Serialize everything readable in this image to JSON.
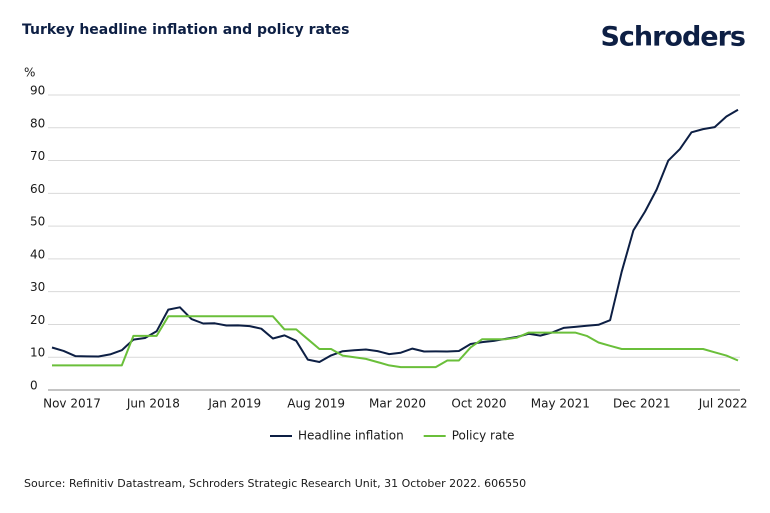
{
  "brand": "Schroders",
  "chart_data": {
    "type": "line",
    "title": "Turkey headline inflation and policy rates",
    "y_label": "%",
    "source": "Source: Refinitiv Datastream, Schroders Strategic Research Unit, 31 October 2022. 606550",
    "categories": [
      "Nov 2017",
      null,
      null,
      null,
      null,
      null,
      null,
      "Jun 2018",
      null,
      null,
      null,
      null,
      null,
      null,
      "Jan 2019",
      null,
      null,
      null,
      null,
      null,
      null,
      "Aug 2019",
      null,
      null,
      null,
      null,
      null,
      null,
      "Mar 2020",
      null,
      null,
      null,
      null,
      null,
      null,
      "Oct 2020",
      null,
      null,
      null,
      null,
      null,
      null,
      "May 2021",
      null,
      null,
      null,
      null,
      null,
      null,
      "Dec 2021",
      null,
      null,
      null,
      null,
      null,
      null,
      "Jul 2022",
      null,
      null,
      null
    ],
    "series": [
      {
        "name": "Headline inflation",
        "color": "#0d1f44",
        "values": [
          12.98,
          11.92,
          10.35,
          10.26,
          10.23,
          10.85,
          12.15,
          15.39,
          15.85,
          17.9,
          24.52,
          25.24,
          21.62,
          20.3,
          20.35,
          19.67,
          19.71,
          19.5,
          18.71,
          15.72,
          16.65,
          15.01,
          9.26,
          8.55,
          10.56,
          11.84,
          12.15,
          12.37,
          11.86,
          10.94,
          11.39,
          12.62,
          11.76,
          11.77,
          11.75,
          11.89,
          14.03,
          14.6,
          14.97,
          15.61,
          16.19,
          17.14,
          16.59,
          17.53,
          18.95,
          19.25,
          19.58,
          19.89,
          21.31,
          36.08,
          48.69,
          54.44,
          61.14,
          69.97,
          73.5,
          78.62,
          79.6,
          80.21,
          83.45,
          85.51
        ]
      },
      {
        "name": "Policy rate",
        "color": "#6abf3a",
        "values": [
          7.5,
          7.5,
          7.5,
          7.5,
          7.5,
          7.5,
          7.5,
          16.5,
          16.5,
          16.5,
          22.5,
          22.5,
          22.5,
          22.5,
          22.5,
          22.5,
          22.5,
          22.5,
          22.5,
          22.5,
          18.5,
          18.5,
          15.5,
          12.5,
          12.5,
          10.5,
          10,
          9.5,
          8.5,
          7.5,
          7,
          7,
          7,
          7,
          9,
          9,
          13,
          15.5,
          15.5,
          15.5,
          16,
          17.5,
          17.5,
          17.5,
          17.5,
          17.5,
          16.5,
          14.5,
          13.5,
          12.5,
          12.5,
          12.5,
          12.5,
          12.5,
          12.5,
          12.5,
          12.5,
          11.5,
          10.5,
          9
        ]
      }
    ],
    "ylim": [
      0,
      90
    ],
    "yticks": [
      0,
      10,
      20,
      30,
      40,
      50,
      60,
      70,
      80,
      90
    ],
    "grid": true,
    "legend": "bottom"
  }
}
